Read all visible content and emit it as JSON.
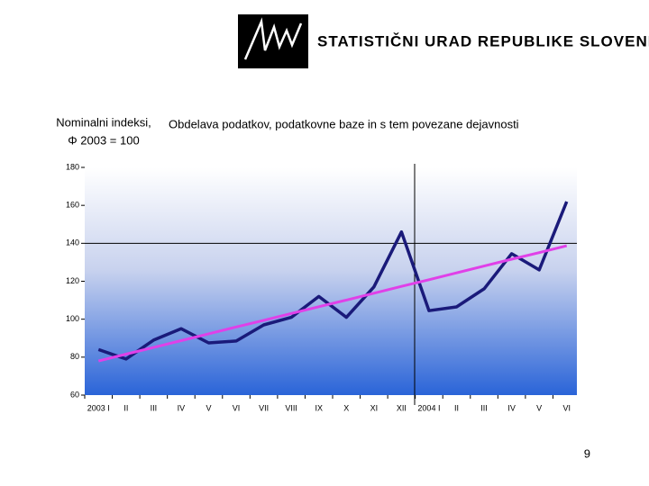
{
  "header": {
    "organization": "STATISTIČNI URAD REPUBLIKE SLOVENIJE"
  },
  "page_number": "9",
  "chart_data": {
    "type": "line",
    "title": "Obdelava podatkov, podatkovne baze in s tem povezane dejavnosti",
    "ylabel": [
      "Nominalni indeksi,",
      "Φ 2003 = 100"
    ],
    "categories": [
      "2003 I",
      "II",
      "III",
      "IV",
      "V",
      "VI",
      "VII",
      "VIII",
      "IX",
      "X",
      "XI",
      "XII",
      "2004 I",
      "II",
      "III",
      "IV",
      "V",
      "VI"
    ],
    "series": [
      {
        "color": "#1a1a7a",
        "values": [
          84,
          79,
          89,
          95,
          87.5,
          88.5,
          97,
          101,
          112,
          101,
          117,
          146,
          104.5,
          106.5,
          116,
          134.5,
          126,
          162
        ]
      },
      {
        "color": "#e040e8",
        "values": [
          78,
          81.6,
          85.1,
          88.7,
          92.3,
          95.9,
          99.4,
          103,
          106.6,
          110.1,
          113.7,
          117.3,
          120.8,
          124.4,
          128,
          131.6,
          135.1,
          138.7
        ]
      }
    ],
    "ylim": [
      60,
      180
    ],
    "yticks": [
      60,
      80,
      100,
      120,
      140,
      160,
      180
    ],
    "hline": 140
  }
}
